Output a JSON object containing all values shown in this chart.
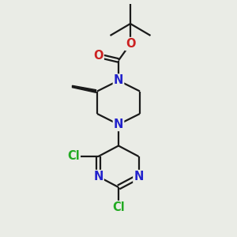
{
  "bg_color": "#eaece6",
  "bond_color": "#1a1a1a",
  "N_color": "#2222cc",
  "O_color": "#cc2222",
  "Cl_color": "#22aa22",
  "line_width": 1.6,
  "font_size": 10.5,
  "fig_size": [
    3.0,
    3.0
  ],
  "dpi": 100,
  "xlim": [
    0,
    10
  ],
  "ylim": [
    0,
    10
  ]
}
